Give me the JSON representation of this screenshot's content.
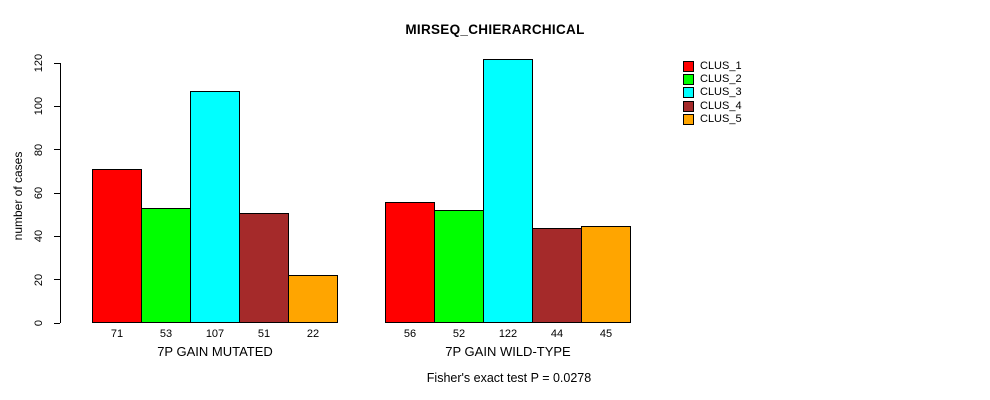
{
  "chart_data": {
    "type": "bar",
    "title": "MIRSEQ_CHIERARCHICAL",
    "ylabel": "number of cases",
    "xlabel": "",
    "ylim": [
      0,
      120
    ],
    "yticks": [
      0,
      20,
      40,
      60,
      80,
      100,
      120
    ],
    "grid": false,
    "legend_position": "right",
    "categories": [
      "7P GAIN MUTATED",
      "7P GAIN WILD-TYPE"
    ],
    "series": [
      {
        "name": "CLUS_1",
        "color": "#ff0000",
        "values": [
          71,
          56
        ]
      },
      {
        "name": "CLUS_2",
        "color": "#00ff00",
        "values": [
          53,
          52
        ]
      },
      {
        "name": "CLUS_3",
        "color": "#00ffff",
        "values": [
          107,
          122
        ]
      },
      {
        "name": "CLUS_4",
        "color": "#a52a2a",
        "values": [
          51,
          44
        ]
      },
      {
        "name": "CLUS_5",
        "color": "#ffa500",
        "values": [
          22,
          45
        ]
      }
    ],
    "bar_value_labels_shown": true,
    "footnote": "Fisher's exact test P = 0.0278"
  }
}
